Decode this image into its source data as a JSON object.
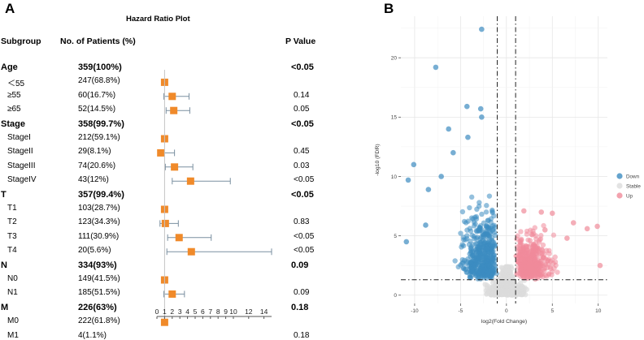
{
  "panels": {
    "a": "A",
    "b": "B"
  },
  "forest": {
    "title": "Hazard Ratio Plot",
    "headers": {
      "subgroup": "Subgroup",
      "patients": "No. of Patients (%)",
      "pvalue": "P Value"
    }
  },
  "chart_data": [
    {
      "type": "forest",
      "title": "Hazard Ratio Plot",
      "columns": [
        "Subgroup",
        "No. of Patients (%)",
        "P Value"
      ],
      "x_ticks": [
        0,
        1,
        2,
        3,
        4,
        5,
        6,
        7,
        8,
        9,
        10,
        12,
        14
      ],
      "xlim": [
        0,
        15
      ],
      "reference_line": 1,
      "rows": [
        {
          "label": "Age",
          "n": "359(100%)",
          "p": "<0.05",
          "bold": true
        },
        {
          "label": "＜55",
          "n": "247(68.8%)",
          "p": "",
          "hr": 1.0,
          "lo": 1.0,
          "hi": 1.0
        },
        {
          "label": "≥55",
          "n": "60(16.7%)",
          "p": "0.14",
          "hr": 2.0,
          "lo": 0.9,
          "hi": 4.2
        },
        {
          "label": "≥65",
          "n": "52(14.5%)",
          "p": "0.05",
          "hr": 2.2,
          "lo": 1.2,
          "hi": 4.3
        },
        {
          "label": "Stage",
          "n": "358(99.7%)",
          "p": "<0.05",
          "bold": true
        },
        {
          "label": "StageI",
          "n": "212(59.1%)",
          "p": "",
          "hr": 1.0,
          "lo": 1.0,
          "hi": 1.0
        },
        {
          "label": "StageII",
          "n": "29(8.1%)",
          "p": "0.45",
          "hr": 0.5,
          "lo": 0.2,
          "hi": 2.3
        },
        {
          "label": "StageIII",
          "n": "74(20.6%)",
          "p": "0.03",
          "hr": 2.3,
          "lo": 1.1,
          "hi": 4.7
        },
        {
          "label": "StageIV",
          "n": "43(12%)",
          "p": "<0.05",
          "hr": 4.4,
          "lo": 2.0,
          "hi": 9.6
        },
        {
          "label": "T",
          "n": "357(99.4%)",
          "p": "<0.05",
          "bold": true
        },
        {
          "label": "T1",
          "n": "103(28.7%)",
          "p": "",
          "hr": 1.0,
          "lo": 1.0,
          "hi": 1.0
        },
        {
          "label": "T2",
          "n": "123(34.3%)",
          "p": "0.83",
          "hr": 1.1,
          "lo": 0.4,
          "hi": 2.8
        },
        {
          "label": "T3",
          "n": "111(30.9%)",
          "p": "<0.05",
          "hr": 2.9,
          "lo": 1.4,
          "hi": 7.1
        },
        {
          "label": "T4",
          "n": "20(5.6%)",
          "p": "<0.05",
          "hr": 4.5,
          "lo": 1.3,
          "hi": 15.0
        },
        {
          "label": "N",
          "n": "334(93%)",
          "p": "0.09",
          "bold": true
        },
        {
          "label": "N0",
          "n": "149(41.5%)",
          "p": "",
          "hr": 1.0,
          "lo": 1.0,
          "hi": 1.0
        },
        {
          "label": "N1",
          "n": "185(51.5%)",
          "p": "0.09",
          "hr": 2.0,
          "lo": 0.9,
          "hi": 3.6
        },
        {
          "label": "M",
          "n": "226(63%)",
          "p": "0.18",
          "bold": true
        },
        {
          "label": "M0",
          "n": "222(61.8%)",
          "p": "",
          "hr": 1.0,
          "lo": 1.0,
          "hi": 1.0
        },
        {
          "label": "M1",
          "n": "4(1.1%)",
          "p": "0.18",
          "hr": 2.9,
          "lo": 0.4,
          "hi": 11.6
        }
      ]
    },
    {
      "type": "scatter",
      "subtype": "volcano",
      "xlabel": "log2(Fold Change)",
      "ylabel": "-log10 (FDR)",
      "xlim": [
        -11.5,
        11
      ],
      "ylim": [
        -0.7,
        23.5
      ],
      "x_ticks": [
        -10,
        -5,
        0,
        5,
        10
      ],
      "y_ticks": [
        0,
        5,
        10,
        15,
        20
      ],
      "cutoff_x": [
        -1,
        1
      ],
      "cutoff_y": 1.3,
      "legend": [
        {
          "label": "Down",
          "color": "#3d8cc1"
        },
        {
          "label": "Stable",
          "color": "#dcdcdc"
        },
        {
          "label": "Up",
          "color": "#f08b9a"
        }
      ],
      "highlighted_points": [
        {
          "group": "Down",
          "x": -2.7,
          "y": 22.4
        },
        {
          "group": "Down",
          "x": -7.7,
          "y": 19.2
        },
        {
          "group": "Down",
          "x": -4.3,
          "y": 15.9
        },
        {
          "group": "Down",
          "x": -2.8,
          "y": 15.7
        },
        {
          "group": "Down",
          "x": -2.7,
          "y": 15.0
        },
        {
          "group": "Down",
          "x": -6.3,
          "y": 14.0
        },
        {
          "group": "Down",
          "x": -4.2,
          "y": 13.3
        },
        {
          "group": "Down",
          "x": -10.1,
          "y": 11.0
        },
        {
          "group": "Down",
          "x": -10.7,
          "y": 9.7
        },
        {
          "group": "Down",
          "x": -8.5,
          "y": 8.9
        },
        {
          "group": "Down",
          "x": -7.1,
          "y": 10.0
        },
        {
          "group": "Down",
          "x": -5.8,
          "y": 12.0
        },
        {
          "group": "Down",
          "x": -10.9,
          "y": 4.5
        },
        {
          "group": "Down",
          "x": -8.8,
          "y": 5.9
        },
        {
          "group": "Up",
          "x": 1.9,
          "y": 7.1
        },
        {
          "group": "Up",
          "x": 3.8,
          "y": 7.0
        },
        {
          "group": "Up",
          "x": 5.0,
          "y": 6.9
        },
        {
          "group": "Up",
          "x": 9.9,
          "y": 5.8
        },
        {
          "group": "Up",
          "x": 8.8,
          "y": 5.6
        },
        {
          "group": "Up",
          "x": 7.3,
          "y": 6.1
        },
        {
          "group": "Up",
          "x": 10.2,
          "y": 2.5
        },
        {
          "group": "Up",
          "x": 6.6,
          "y": 4.8
        },
        {
          "group": "Up",
          "x": 4.2,
          "y": 5.5
        }
      ]
    }
  ]
}
